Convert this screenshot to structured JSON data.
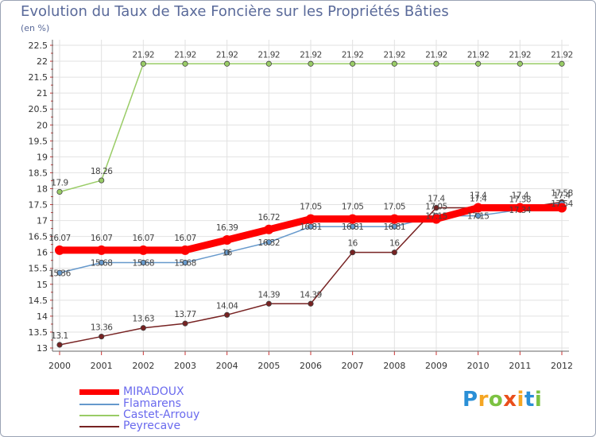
{
  "chart_data": {
    "type": "line",
    "title": "Evolution du Taux de Taxe Foncière sur les Propriétés Bâties",
    "ylabel": "(en %)",
    "xlabel": "",
    "categories": [
      "2000",
      "2001",
      "2002",
      "2003",
      "2004",
      "2005",
      "2006",
      "2007",
      "2008",
      "2009",
      "2010",
      "2011",
      "2012"
    ],
    "ylim": [
      13,
      22.5
    ],
    "yticks": [
      "13",
      "13.5",
      "14",
      "14.5",
      "15",
      "15.5",
      "16",
      "16.5",
      "17",
      "17.5",
      "18",
      "18.5",
      "19",
      "19.5",
      "20",
      "20.5",
      "21",
      "21.5",
      "22",
      "22.5"
    ],
    "legend_position": "bottom-left",
    "series": [
      {
        "name": "MIRADOUX",
        "color": "#ff0000",
        "values": [
          16.07,
          16.07,
          16.07,
          16.07,
          16.39,
          16.72,
          17.05,
          17.05,
          17.05,
          17.05,
          17.4,
          17.4,
          17.4
        ],
        "labels": [
          "16.07",
          "16.07",
          "16.07",
          "16.07",
          "16.39",
          "16.72",
          "17.05",
          "17.05",
          "17.05",
          "17.05",
          "17.4",
          "17.4",
          "17.4"
        ]
      },
      {
        "name": "Flamarens",
        "color": "#6699cc",
        "values": [
          15.36,
          15.68,
          15.68,
          15.68,
          16,
          16.32,
          16.81,
          16.81,
          16.81,
          17.15,
          17.15,
          17.34,
          17.54
        ],
        "labels": [
          "15.36",
          "15.68",
          "15.68",
          "15.68",
          "16",
          "16.32",
          "16.81",
          "16.81",
          "16.81",
          "17.15",
          "17.15",
          "17.34",
          "17.54"
        ]
      },
      {
        "name": "Castet-Arrouy",
        "color": "#99cc66",
        "values": [
          17.9,
          18.26,
          21.92,
          21.92,
          21.92,
          21.92,
          21.92,
          21.92,
          21.92,
          21.92,
          21.92,
          21.92,
          21.92
        ],
        "labels": [
          "17.9",
          "18.26",
          "21.92",
          "21.92",
          "21.92",
          "21.92",
          "21.92",
          "21.92",
          "21.92",
          "21.92",
          "21.92",
          "21.92",
          "21.92"
        ]
      },
      {
        "name": "Peyrecave",
        "color": "#772222",
        "values": [
          13.1,
          13.36,
          13.63,
          13.77,
          14.04,
          14.39,
          14.39,
          16,
          16,
          17.4,
          17.4,
          17.38,
          17.58
        ],
        "labels": [
          "13.1",
          "13.36",
          "13.63",
          "13.77",
          "14.04",
          "14.39",
          "14.39",
          "16",
          "16",
          "17.4",
          "17.4",
          "17.38",
          "17.58"
        ]
      }
    ]
  },
  "logo": {
    "letters": [
      "P",
      "r",
      "o",
      "x",
      "i",
      "t",
      "i"
    ],
    "colors": [
      "#2a8fd6",
      "#f5a623",
      "#7cc242",
      "#e94e1b",
      "#f5a623",
      "#2a8fd6",
      "#7cc242"
    ]
  }
}
